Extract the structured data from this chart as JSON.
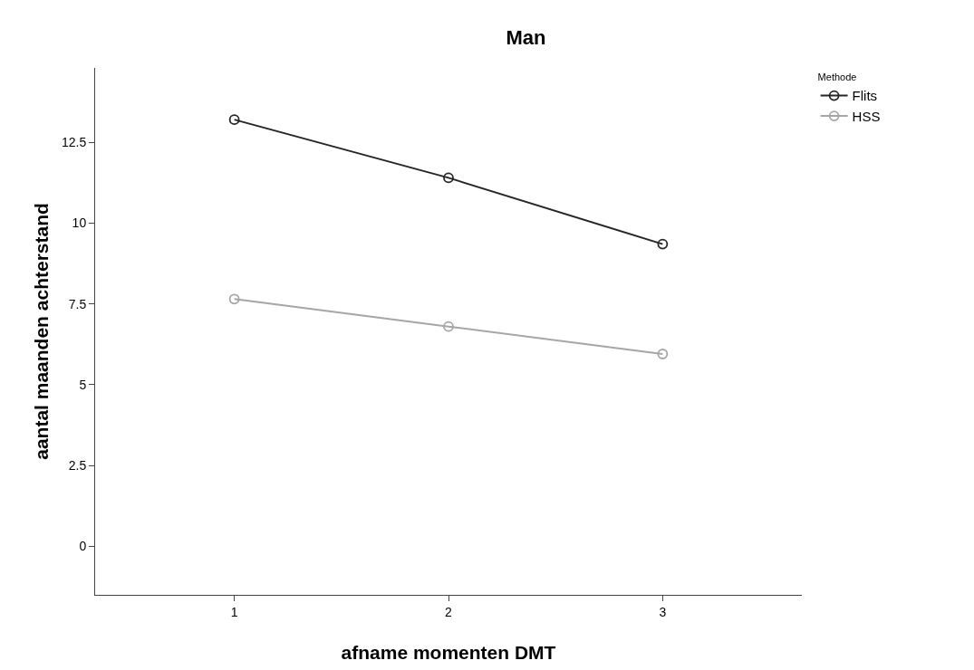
{
  "chart_data": {
    "type": "line",
    "title": "Man",
    "xlabel": "afname momenten DMT",
    "ylabel": "aantal maanden achterstand",
    "legend_title": "Methode",
    "x": [
      1,
      2,
      3
    ],
    "series": [
      {
        "name": "Flits",
        "color": "#262626",
        "values": [
          13.2,
          11.4,
          9.35
        ]
      },
      {
        "name": "HSS",
        "color": "#a6a6a6",
        "values": [
          7.65,
          6.8,
          5.95
        ]
      }
    ],
    "xlim": [
      0.35,
      3.65
    ],
    "xticks": [
      1,
      2,
      3
    ],
    "ylim": [
      -1.5,
      14.8
    ],
    "yticks": [
      0,
      2.5,
      5,
      7.5,
      10,
      12.5
    ],
    "legend": "top right",
    "marker": "circle",
    "line_style": "solid"
  }
}
